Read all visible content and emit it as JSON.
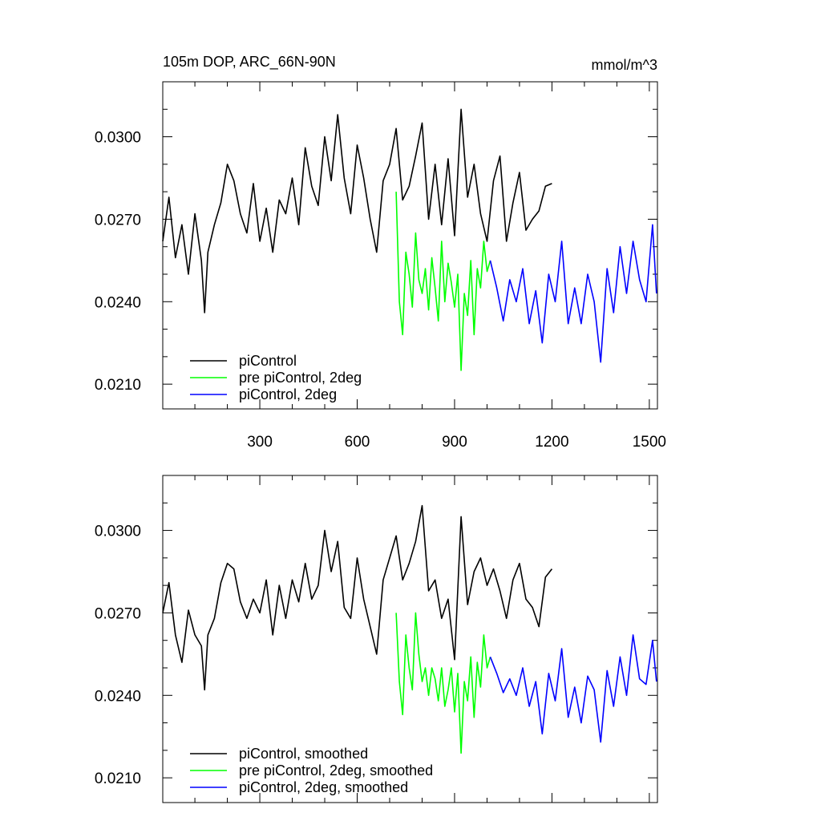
{
  "colors": {
    "black": "#000000",
    "green": "#00ff00",
    "blue": "#0000ff"
  },
  "chart_data": [
    {
      "type": "line",
      "title": "105m DOP, ARC_66N-90N",
      "units": "mmol/m^3",
      "xlim": [
        1,
        1525
      ],
      "ylim": [
        0.0201,
        0.032
      ],
      "x_ticks": [
        300,
        600,
        900,
        1200,
        1500
      ],
      "x_tick_labels": [
        "300",
        "600",
        "900",
        "1200",
        "1500"
      ],
      "y_ticks": [
        0.021,
        0.024,
        0.027,
        0.03
      ],
      "y_tick_labels": [
        "0.0210",
        "0.0240",
        "0.0270",
        "0.0300"
      ],
      "legend_position": "lower-left",
      "series": [
        {
          "name": "piControl",
          "color": "#000000",
          "x": [
            1,
            20,
            40,
            60,
            80,
            100,
            120,
            130,
            140,
            160,
            180,
            200,
            220,
            240,
            260,
            280,
            300,
            320,
            340,
            360,
            380,
            400,
            420,
            440,
            460,
            480,
            500,
            520,
            540,
            560,
            580,
            600,
            620,
            640,
            660,
            680,
            700,
            720,
            740,
            760,
            780,
            800,
            820,
            840,
            860,
            880,
            900,
            920,
            940,
            960,
            980,
            1000,
            1020,
            1040,
            1060,
            1080,
            1100,
            1120,
            1140,
            1160,
            1180,
            1200
          ],
          "values": [
            0.0262,
            0.0278,
            0.0256,
            0.0268,
            0.025,
            0.0272,
            0.0255,
            0.0236,
            0.0258,
            0.0268,
            0.0276,
            0.029,
            0.0284,
            0.0272,
            0.0265,
            0.0283,
            0.0262,
            0.0274,
            0.0258,
            0.0277,
            0.0272,
            0.0285,
            0.0268,
            0.0296,
            0.0282,
            0.0275,
            0.03,
            0.0284,
            0.0308,
            0.0285,
            0.0272,
            0.0297,
            0.0285,
            0.027,
            0.0258,
            0.0284,
            0.029,
            0.0303,
            0.0277,
            0.0282,
            0.0293,
            0.0305,
            0.027,
            0.029,
            0.0268,
            0.0292,
            0.0264,
            0.031,
            0.0278,
            0.029,
            0.0272,
            0.0262,
            0.0284,
            0.0293,
            0.0262,
            0.0276,
            0.0287,
            0.0266,
            0.027,
            0.0273,
            0.0282,
            0.0283
          ]
        },
        {
          "name": "pre piControl, 2deg",
          "color": "#00ff00",
          "x": [
            720,
            730,
            740,
            750,
            760,
            770,
            780,
            790,
            800,
            810,
            820,
            830,
            840,
            850,
            860,
            870,
            880,
            890,
            900,
            910,
            920,
            930,
            940,
            950,
            960,
            970,
            980,
            990,
            1000,
            1010
          ],
          "values": [
            0.028,
            0.024,
            0.0228,
            0.0258,
            0.025,
            0.0238,
            0.0265,
            0.0248,
            0.0243,
            0.0252,
            0.0237,
            0.0256,
            0.0245,
            0.0233,
            0.0262,
            0.024,
            0.0254,
            0.0247,
            0.0238,
            0.025,
            0.0215,
            0.0243,
            0.0235,
            0.0255,
            0.0228,
            0.0252,
            0.0245,
            0.0262,
            0.0251,
            0.0255
          ]
        },
        {
          "name": "piControl, 2deg",
          "color": "#0000ff",
          "x": [
            1010,
            1030,
            1050,
            1070,
            1090,
            1110,
            1130,
            1150,
            1170,
            1190,
            1210,
            1230,
            1250,
            1270,
            1290,
            1310,
            1330,
            1350,
            1370,
            1390,
            1410,
            1430,
            1450,
            1470,
            1490,
            1510,
            1522
          ],
          "values": [
            0.0255,
            0.0245,
            0.0233,
            0.0248,
            0.024,
            0.0252,
            0.0232,
            0.0244,
            0.0225,
            0.025,
            0.024,
            0.0262,
            0.0232,
            0.0245,
            0.0232,
            0.025,
            0.024,
            0.0218,
            0.0252,
            0.0236,
            0.026,
            0.0243,
            0.0262,
            0.0248,
            0.024,
            0.0268,
            0.0243
          ]
        }
      ]
    },
    {
      "type": "line",
      "xlim": [
        1,
        1525
      ],
      "ylim": [
        0.0201,
        0.032
      ],
      "x_ticks": [
        300,
        600,
        900,
        1200,
        1500
      ],
      "y_ticks": [
        0.021,
        0.024,
        0.027,
        0.03
      ],
      "y_tick_labels": [
        "0.0210",
        "0.0240",
        "0.0270",
        "0.0300"
      ],
      "legend_position": "lower-left",
      "series": [
        {
          "name": "piControl, smoothed",
          "color": "#000000",
          "x": [
            1,
            20,
            40,
            60,
            80,
            100,
            120,
            130,
            140,
            160,
            180,
            200,
            220,
            240,
            260,
            280,
            300,
            320,
            340,
            360,
            380,
            400,
            420,
            440,
            460,
            480,
            500,
            520,
            540,
            560,
            580,
            600,
            620,
            640,
            660,
            680,
            700,
            720,
            740,
            760,
            780,
            800,
            820,
            840,
            860,
            880,
            900,
            920,
            940,
            960,
            980,
            1000,
            1020,
            1040,
            1060,
            1080,
            1100,
            1120,
            1140,
            1160,
            1180,
            1200
          ],
          "values": [
            0.027,
            0.0281,
            0.0262,
            0.0252,
            0.0271,
            0.0262,
            0.0258,
            0.0242,
            0.0262,
            0.0268,
            0.0281,
            0.0288,
            0.0286,
            0.0274,
            0.0268,
            0.0275,
            0.027,
            0.0282,
            0.0262,
            0.028,
            0.0268,
            0.0282,
            0.0274,
            0.0288,
            0.0275,
            0.028,
            0.03,
            0.0285,
            0.0296,
            0.0272,
            0.0268,
            0.029,
            0.0275,
            0.0265,
            0.0255,
            0.0282,
            0.029,
            0.0298,
            0.0282,
            0.0288,
            0.0296,
            0.0309,
            0.0278,
            0.0282,
            0.0268,
            0.0275,
            0.0253,
            0.0305,
            0.0273,
            0.0285,
            0.029,
            0.028,
            0.0286,
            0.0278,
            0.0268,
            0.0282,
            0.0288,
            0.0275,
            0.0272,
            0.0265,
            0.0283,
            0.0286
          ]
        },
        {
          "name": "pre piControl, 2deg, smoothed",
          "color": "#00ff00",
          "x": [
            720,
            730,
            740,
            750,
            760,
            770,
            780,
            790,
            800,
            810,
            820,
            830,
            840,
            850,
            860,
            870,
            880,
            890,
            900,
            910,
            920,
            930,
            940,
            950,
            960,
            970,
            980,
            990,
            1000,
            1010
          ],
          "values": [
            0.027,
            0.0245,
            0.0233,
            0.0262,
            0.025,
            0.0242,
            0.027,
            0.0255,
            0.0245,
            0.025,
            0.024,
            0.025,
            0.0246,
            0.0238,
            0.025,
            0.0236,
            0.0242,
            0.025,
            0.0234,
            0.0248,
            0.0219,
            0.0245,
            0.0238,
            0.0254,
            0.0232,
            0.0252,
            0.0243,
            0.0262,
            0.025,
            0.0254
          ]
        },
        {
          "name": "piControl, 2deg, smoothed",
          "color": "#0000ff",
          "x": [
            1010,
            1030,
            1050,
            1070,
            1090,
            1110,
            1130,
            1150,
            1170,
            1190,
            1210,
            1230,
            1250,
            1270,
            1290,
            1310,
            1330,
            1350,
            1370,
            1390,
            1410,
            1430,
            1450,
            1470,
            1490,
            1510,
            1522
          ],
          "values": [
            0.0254,
            0.0248,
            0.0241,
            0.0246,
            0.024,
            0.025,
            0.0236,
            0.0245,
            0.0226,
            0.0248,
            0.0238,
            0.0257,
            0.0232,
            0.0243,
            0.023,
            0.0247,
            0.0242,
            0.0223,
            0.0249,
            0.0236,
            0.0254,
            0.024,
            0.0262,
            0.0246,
            0.0244,
            0.026,
            0.0245
          ]
        }
      ]
    }
  ]
}
